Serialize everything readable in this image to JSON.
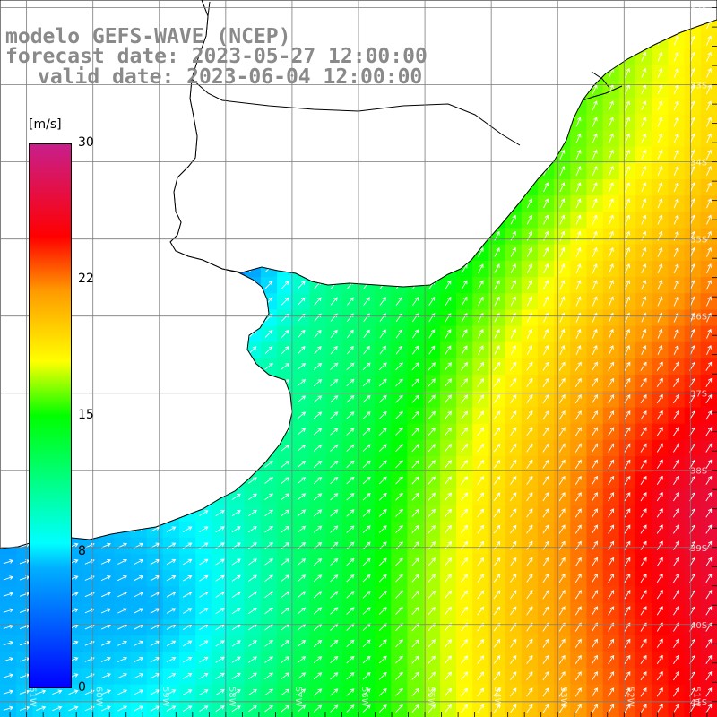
{
  "title": {
    "line1": "modelo GEFS-WAVE (NCEP)",
    "line2": "forecast date: 2023-05-27 12:00:00",
    "line3": "valid date: 2023-06-04 12:00:00"
  },
  "colorbar": {
    "unit": "[m/s]",
    "ticks": [
      "30",
      "22",
      "15",
      "8",
      "0"
    ],
    "tick_values": [
      30,
      22,
      15,
      8,
      0
    ],
    "min": 0,
    "max": 30,
    "colors": {
      "0": "#0000ff",
      "8": "#00ffff",
      "15": "#00ff00",
      "18": "#ffff00",
      "22": "#ff9a00",
      "25": "#ff0000",
      "30": "#c81f8c"
    }
  },
  "map": {
    "variable": "wind speed",
    "lon_range": [
      -61.4,
      -50.6
    ],
    "lat_range": [
      -41.2,
      -31.9
    ],
    "grid_lon": [
      -61,
      -60,
      -59,
      -58,
      -57,
      -56,
      -55,
      -54,
      -53,
      -52,
      -51
    ],
    "grid_lat": [
      -32,
      -33,
      -34,
      -35,
      -36,
      -37,
      -38,
      -39,
      -40,
      -41
    ],
    "lon_labels": [
      "61W",
      "60W",
      "59W",
      "58W",
      "57W",
      "56W",
      "55W",
      "54W",
      "53W",
      "52W",
      "51W"
    ],
    "lat_labels": [
      "32S",
      "33S",
      "34S",
      "35S",
      "36S",
      "37S",
      "38S",
      "39S",
      "40S",
      "41S"
    ],
    "land_color": "#ffffff",
    "coast_color": "#000000",
    "arrow_color": "#ffffff",
    "arrow_direction": "toward north-east"
  }
}
